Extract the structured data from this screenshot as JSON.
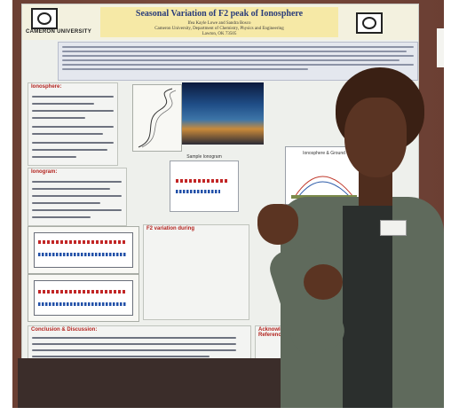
{
  "poster": {
    "title": "Seasonal Variation of F2 peak of Ionosphere",
    "authors": "Ifea Kayle Lowe and Sandra Bosco",
    "affiliation": "Cameron University, Department of Chemistry, Physics and Engineering",
    "location": "Lawton, OK 73505",
    "logo_text": "CAMERON UNIVERSITY",
    "sections": [
      {
        "heading": "Ionosphere:"
      },
      {
        "heading": "Ionogram:"
      },
      {
        "heading": "F2 variation during"
      },
      {
        "heading": "Conclusion & Discussion:"
      },
      {
        "heading": "Acknowledgement & References"
      }
    ],
    "figure_caption": "Sample Ionogram",
    "diagram_caption": "Ionosphere & Ground"
  },
  "colors": {
    "wall": "#6b3f33",
    "poster_bg": "#eef0ec",
    "title_band": "#f6e9a6",
    "heading_red": "#b3241f",
    "title_blue": "#2a3d7a",
    "jacket": "#5f6a5c"
  }
}
